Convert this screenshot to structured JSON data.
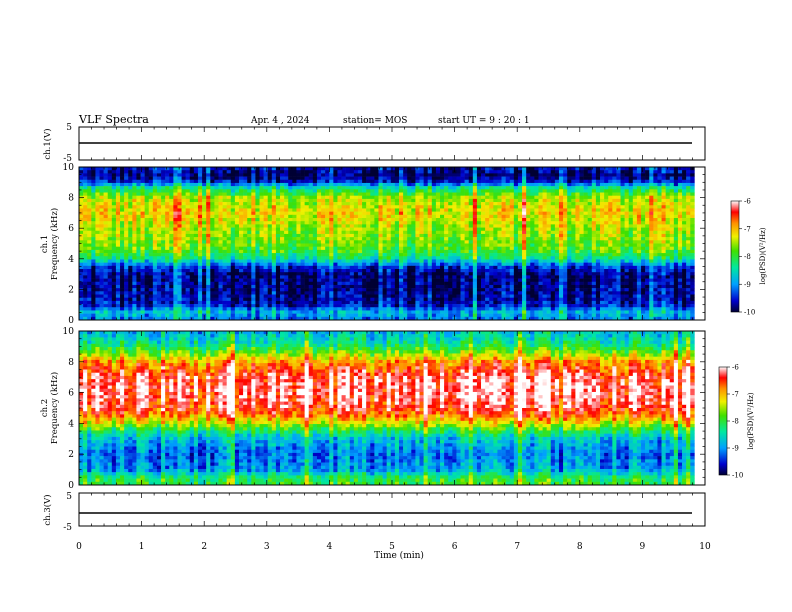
{
  "header": {
    "title": "VLF Spectra",
    "date": "Apr. 4  , 2024",
    "station": "station= MOS",
    "start": "start  UT  =   9  : 20 : 1"
  },
  "chart_data": [
    {
      "type": "line",
      "id": "ch1-waveform",
      "ylabel": "ch.1(V)",
      "ylim": [
        -5,
        5
      ],
      "yticks": [
        "5",
        "-5"
      ],
      "xlim": [
        0,
        10
      ],
      "series": [
        {
          "x": [
            0,
            9.83
          ],
          "values": [
            0,
            0
          ]
        }
      ]
    },
    {
      "type": "heatmap",
      "id": "ch1-spectrogram",
      "ylabel": "ch.1\nFrequency  (kHz)",
      "ylim": [
        0,
        10
      ],
      "yticks": [
        "0",
        "2",
        "4",
        "6",
        "8",
        "10"
      ],
      "xlim": [
        0,
        10
      ],
      "data_end_min": 9.83,
      "colorbar": {
        "label": "log(PSD)(V²/Hz)",
        "range": [
          -10,
          -6
        ],
        "ticks": [
          "-6",
          "-7",
          "-8",
          "-9",
          "-10"
        ]
      },
      "profile": {
        "freq_khz": [
          0,
          0.5,
          1,
          2,
          3,
          3.5,
          4,
          4.5,
          5,
          6,
          7,
          8,
          8.7,
          9,
          9.5,
          10
        ],
        "log_psd": [
          -9.2,
          -8.8,
          -9.6,
          -9.8,
          -9.8,
          -9.4,
          -8.4,
          -7.9,
          -7.7,
          -7.5,
          -7.2,
          -7.5,
          -8.5,
          -9.5,
          -9.9,
          -9.6
        ]
      }
    },
    {
      "type": "heatmap",
      "id": "ch2-spectrogram",
      "ylabel": "ch.2\nFrequency  (kHz)",
      "ylim": [
        0,
        10
      ],
      "yticks": [
        "0",
        "2",
        "4",
        "6",
        "8",
        "10"
      ],
      "xlim": [
        0,
        10
      ],
      "data_end_min": 9.83,
      "colorbar": {
        "label": "log(PSD)(V²/Hz)",
        "range": [
          -10,
          -6
        ],
        "ticks": [
          "-6",
          "-7",
          "-8",
          "-9",
          "-10"
        ]
      },
      "profile": {
        "freq_khz": [
          0,
          0.5,
          1,
          2,
          3,
          3.5,
          4,
          4.5,
          5,
          6,
          7,
          8,
          8.5,
          9,
          9.5,
          10
        ],
        "log_psd": [
          -8.0,
          -8.2,
          -9.0,
          -9.2,
          -8.8,
          -8.2,
          -7.4,
          -6.8,
          -6.4,
          -6.2,
          -6.3,
          -6.9,
          -7.6,
          -8.2,
          -8.6,
          -8.8
        ]
      }
    },
    {
      "type": "line",
      "id": "ch3-waveform",
      "ylabel": "ch.3(V)",
      "ylim": [
        -5,
        5
      ],
      "yticks": [
        "5",
        "-5"
      ],
      "xlim": [
        0,
        10
      ],
      "series": [
        {
          "x": [
            0,
            9.83
          ],
          "values": [
            0,
            0
          ]
        }
      ]
    }
  ],
  "x_axis": {
    "label": "Time  (min)",
    "ticks": [
      "0",
      "1",
      "2",
      "3",
      "4",
      "5",
      "6",
      "7",
      "8",
      "9",
      "10"
    ]
  }
}
